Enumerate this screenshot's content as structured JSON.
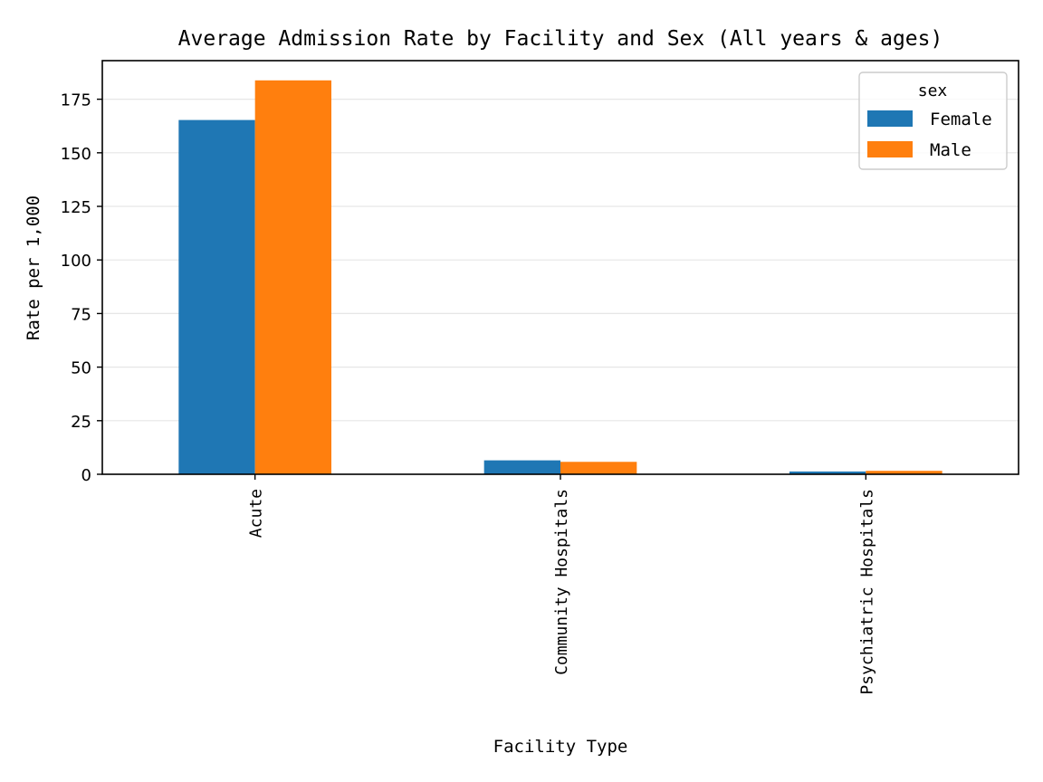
{
  "chart_data": {
    "type": "bar",
    "title": "Average Admission Rate by Facility and Sex (All years & ages)",
    "xlabel": "Facility Type",
    "ylabel": "Rate per 1,000",
    "categories": [
      "Acute",
      "Community Hospitals",
      "Psychiatric Hospitals"
    ],
    "series": [
      {
        "name": "Female",
        "color": "#1f77b4",
        "values": [
          165.3,
          6.5,
          1.3
        ]
      },
      {
        "name": "Male",
        "color": "#ff7f0e",
        "values": [
          183.8,
          5.8,
          1.6
        ]
      }
    ],
    "ylim": [
      0,
      193
    ],
    "yticks": [
      0,
      25,
      50,
      75,
      100,
      125,
      150,
      175
    ],
    "grid": "y",
    "legend": {
      "title": "sex",
      "position": "top-right"
    }
  }
}
